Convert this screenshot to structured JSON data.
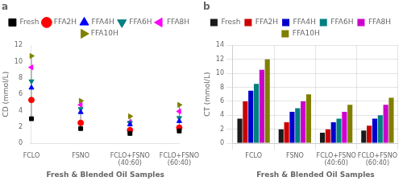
{
  "chart_data": [
    {
      "type": "scatter",
      "annotations": [
        "a"
      ],
      "x_label": "Fresh & Blended Oil Samples",
      "y_label": "CD (mmol/L)",
      "categories": [
        "FCLO",
        "FSNO",
        "FCLO+FSNO\n(40:60)",
        "FCLO+FSNO\n(60:40)"
      ],
      "series": [
        {
          "name": "Fresh",
          "color": "black",
          "marker": "square",
          "values": [
            3.0,
            1.8,
            1.2,
            1.5
          ]
        },
        {
          "name": "FFA2H",
          "color": "red",
          "marker": "circle",
          "values": [
            5.3,
            2.5,
            1.6,
            1.9
          ]
        },
        {
          "name": "FFA4H",
          "color": "blue",
          "marker": "triangle-up",
          "values": [
            6.8,
            3.8,
            2.3,
            2.7
          ]
        },
        {
          "name": "FFA6H",
          "color": "#008080",
          "marker": "triangle-down",
          "values": [
            7.6,
            4.2,
            2.5,
            3.1
          ]
        },
        {
          "name": "FFA8H",
          "color": "#FF00FF",
          "marker": "triangle-left",
          "values": [
            9.3,
            4.7,
            2.6,
            3.9
          ]
        },
        {
          "name": "FFA10H",
          "color": "#808000",
          "marker": "triangle-right",
          "values": [
            10.7,
            5.2,
            3.3,
            4.7
          ]
        }
      ],
      "ylim": [
        0,
        12
      ],
      "yticks": [
        0,
        2,
        4,
        6,
        8,
        10,
        12
      ],
      "grid": false,
      "legend": "top"
    },
    {
      "type": "bar",
      "annotations": [
        "b"
      ],
      "x_label": "Fresh & Blended Oil Samples",
      "y_label": "CT (mmol/L)",
      "categories": [
        "FCLO",
        "FSNO",
        "FCLO+FSNO\n(40:60)",
        "FCLO+FSNO\n(60:40)"
      ],
      "series": [
        {
          "name": "Fresh",
          "color": "#1a1a1a",
          "values": [
            3.5,
            2.0,
            1.5,
            1.8
          ]
        },
        {
          "name": "FFA2H",
          "color": "#cc0000",
          "values": [
            6.0,
            3.0,
            2.0,
            2.5
          ]
        },
        {
          "name": "FFA4H",
          "color": "#0000cc",
          "values": [
            7.5,
            4.5,
            3.0,
            3.5
          ]
        },
        {
          "name": "FFA6H",
          "color": "#008080",
          "values": [
            8.5,
            5.0,
            3.5,
            4.0
          ]
        },
        {
          "name": "FFA8H",
          "color": "#cc00cc",
          "values": [
            10.5,
            6.0,
            4.5,
            5.5
          ]
        },
        {
          "name": "FFA10H",
          "color": "#808000",
          "values": [
            12.0,
            7.0,
            5.5,
            6.5
          ]
        }
      ],
      "ylim": [
        0,
        14
      ],
      "yticks": [
        0,
        2,
        4,
        6,
        8,
        10,
        12,
        14
      ],
      "grid": true,
      "legend": "top"
    }
  ]
}
